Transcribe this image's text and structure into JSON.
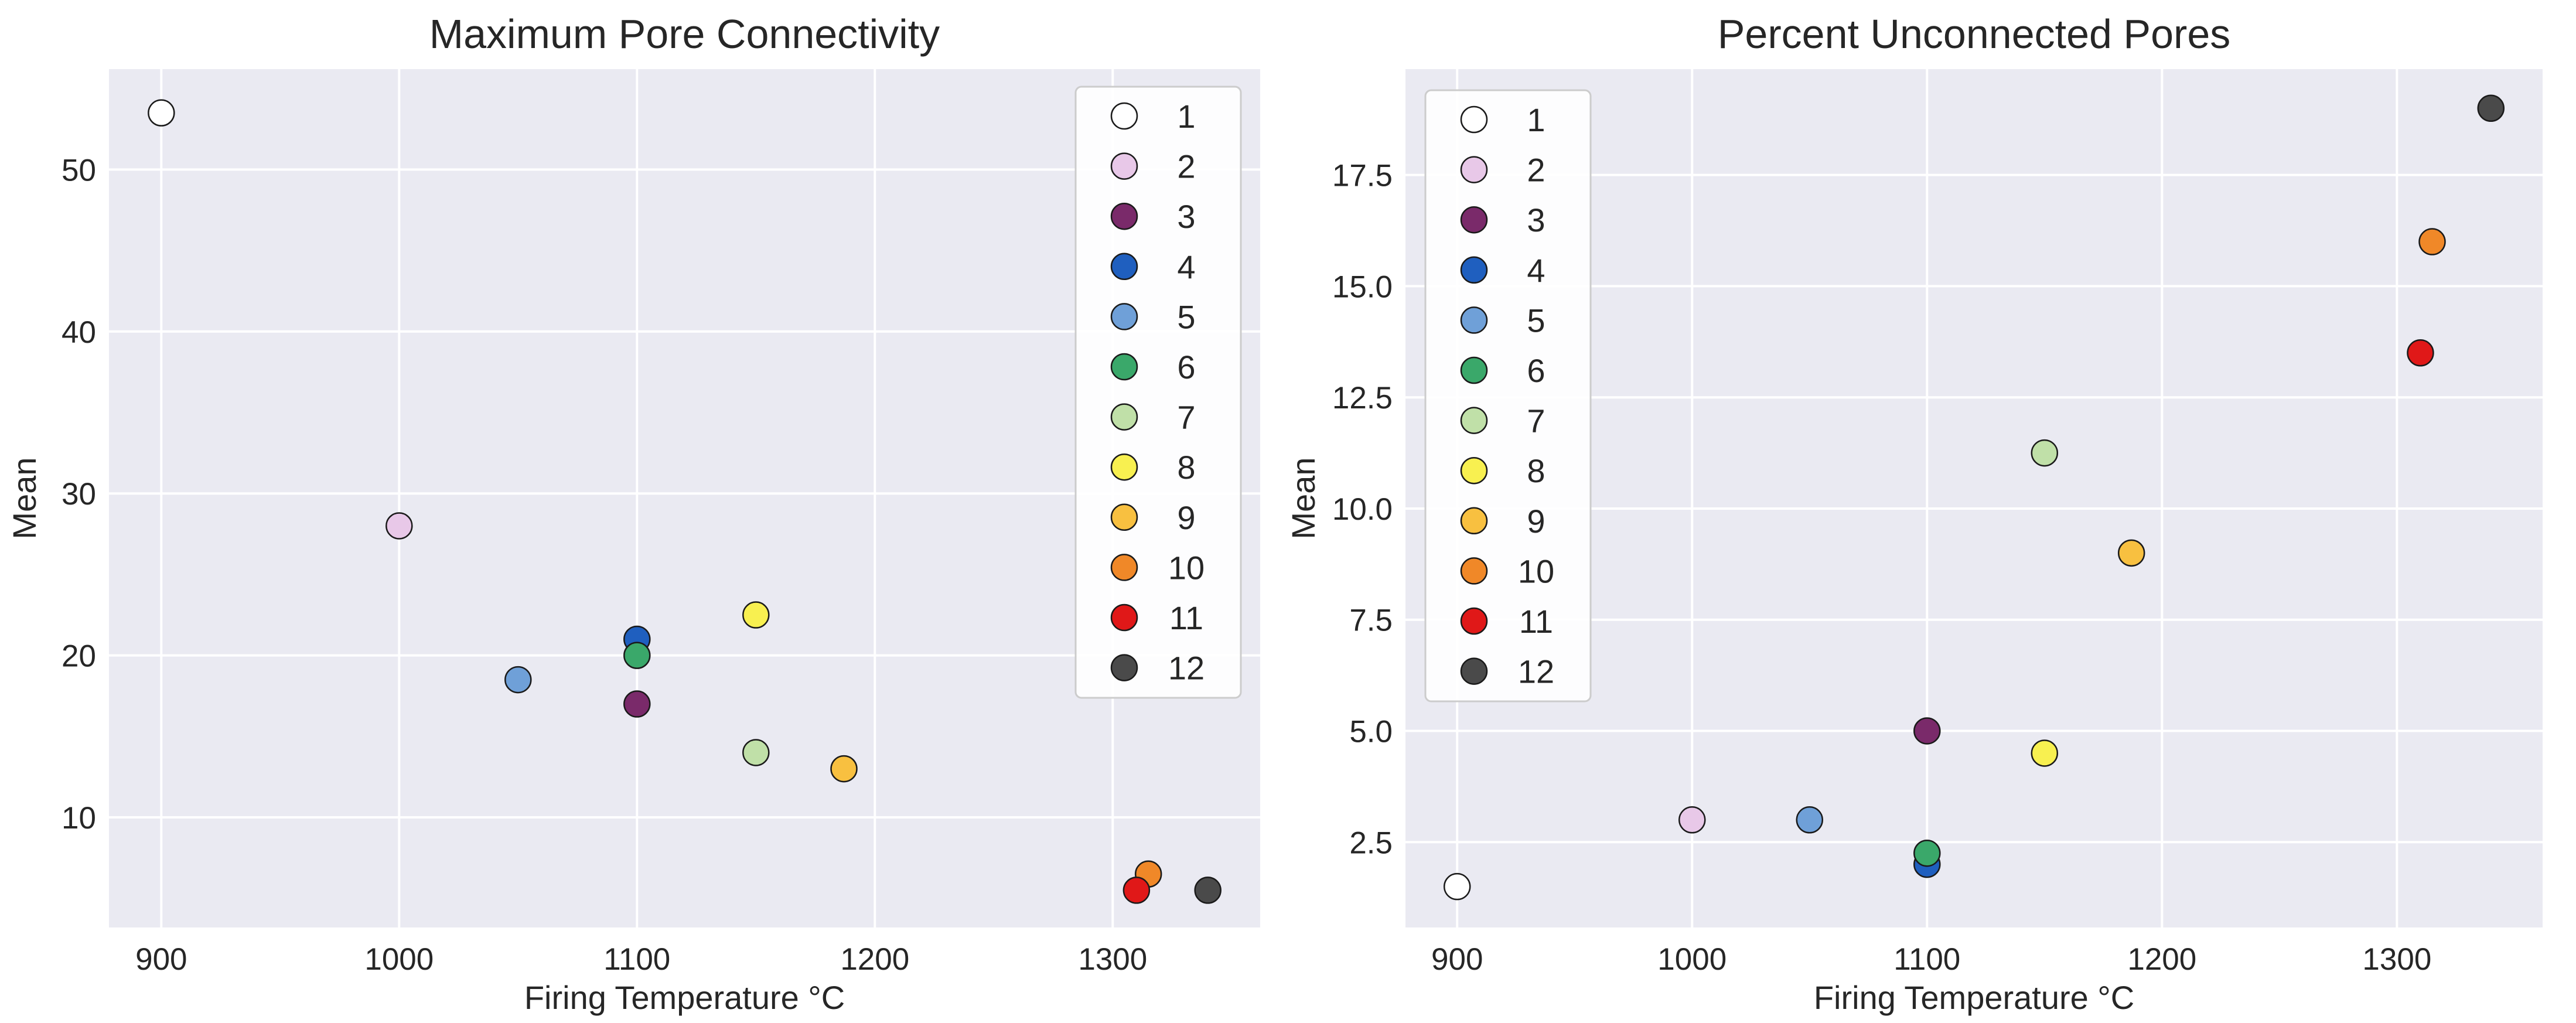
{
  "colors": {
    "series": [
      "#ffffff",
      "#e8c8e8",
      "#7a2a6a",
      "#1f5fbf",
      "#6fa0d8",
      "#3aa86a",
      "#c0e0a8",
      "#f8f050",
      "#f8c040",
      "#f08828",
      "#e01818",
      "#4a4a4a"
    ],
    "plot_background": "#eaeaf2",
    "grid": "#ffffff"
  },
  "chart_data": [
    {
      "type": "scatter",
      "title": "Maximum Pore Connectivity",
      "xlabel": "Firing Temperature °C",
      "ylabel": "Mean",
      "xlim": [
        878,
        1362
      ],
      "ylim": [
        3.2,
        56.2
      ],
      "xticks": [
        900,
        1000,
        1100,
        1200,
        1300
      ],
      "yticks": [
        10,
        20,
        30,
        40,
        50
      ],
      "ytick_labels": [
        "10",
        "20",
        "30",
        "40",
        "50"
      ],
      "grid": true,
      "legend_position": "upper-right",
      "series": [
        {
          "name": "1",
          "x": 900,
          "y": 53.5
        },
        {
          "name": "2",
          "x": 1000,
          "y": 28.0
        },
        {
          "name": "3",
          "x": 1100,
          "y": 17.0
        },
        {
          "name": "4",
          "x": 1100,
          "y": 21.0
        },
        {
          "name": "5",
          "x": 1050,
          "y": 18.5
        },
        {
          "name": "6",
          "x": 1100,
          "y": 20.0
        },
        {
          "name": "7",
          "x": 1150,
          "y": 14.0
        },
        {
          "name": "8",
          "x": 1150,
          "y": 22.5
        },
        {
          "name": "9",
          "x": 1187,
          "y": 13.0
        },
        {
          "name": "10",
          "x": 1315,
          "y": 6.5
        },
        {
          "name": "11",
          "x": 1310,
          "y": 5.5
        },
        {
          "name": "12",
          "x": 1340,
          "y": 5.5
        }
      ]
    },
    {
      "type": "scatter",
      "title": "Percent Unconnected Pores",
      "xlabel": "Firing Temperature °C",
      "ylabel": "Mean",
      "xlim": [
        878,
        1362
      ],
      "ylim": [
        0.58,
        19.88
      ],
      "xticks": [
        900,
        1000,
        1100,
        1200,
        1300
      ],
      "yticks": [
        2.5,
        5.0,
        7.5,
        10.0,
        12.5,
        15.0,
        17.5
      ],
      "ytick_labels": [
        "2.5",
        "5.0",
        "7.5",
        "10.0",
        "12.5",
        "15.0",
        "17.5"
      ],
      "grid": true,
      "legend_position": "upper-left",
      "series": [
        {
          "name": "1",
          "x": 900,
          "y": 1.5
        },
        {
          "name": "2",
          "x": 1000,
          "y": 3.0
        },
        {
          "name": "3",
          "x": 1100,
          "y": 5.0
        },
        {
          "name": "4",
          "x": 1100,
          "y": 2.0
        },
        {
          "name": "5",
          "x": 1050,
          "y": 3.0
        },
        {
          "name": "6",
          "x": 1100,
          "y": 2.25
        },
        {
          "name": "7",
          "x": 1150,
          "y": 11.25
        },
        {
          "name": "8",
          "x": 1150,
          "y": 4.5
        },
        {
          "name": "9",
          "x": 1187,
          "y": 9.0
        },
        {
          "name": "10",
          "x": 1315,
          "y": 16.0
        },
        {
          "name": "11",
          "x": 1310,
          "y": 13.5
        },
        {
          "name": "12",
          "x": 1340,
          "y": 19.0
        }
      ]
    }
  ]
}
